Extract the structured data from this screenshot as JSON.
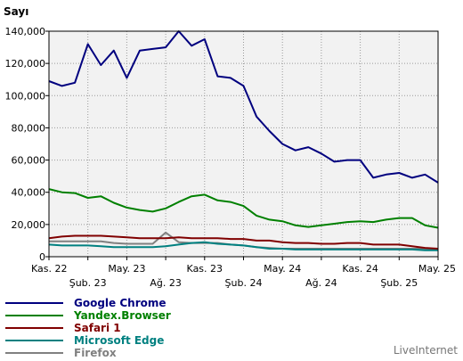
{
  "chart_data": {
    "type": "line",
    "title": "",
    "ylabel": "Sayı",
    "xlabel": "",
    "ylim": [
      0,
      140000
    ],
    "grid": true,
    "legend_position": "bottom-left",
    "yticks": [
      0,
      20000,
      40000,
      60000,
      80000,
      100000,
      120000,
      140000
    ],
    "ytick_labels": [
      "0",
      "20,000",
      "40,000",
      "60,000",
      "80,000",
      "100,000",
      "120,000",
      "140,000"
    ],
    "x": [
      "2022-11",
      "2022-12",
      "2023-01",
      "2023-02",
      "2023-03",
      "2023-04",
      "2023-05",
      "2023-06",
      "2023-07",
      "2023-08",
      "2023-09",
      "2023-10",
      "2023-11",
      "2023-12",
      "2024-01",
      "2024-02",
      "2024-03",
      "2024-04",
      "2024-05",
      "2024-06",
      "2024-07",
      "2024-08",
      "2024-09",
      "2024-10",
      "2024-11",
      "2024-12",
      "2025-01",
      "2025-02",
      "2025-03",
      "2025-04",
      "2025-05"
    ],
    "xtick_labels": [
      {
        "at": "2022-11",
        "label": "Kas. 22",
        "row": 0
      },
      {
        "at": "2023-02",
        "label": "Şub. 23",
        "row": 1
      },
      {
        "at": "2023-05",
        "label": "May. 23",
        "row": 0
      },
      {
        "at": "2023-08",
        "label": "Ağ. 23",
        "row": 1
      },
      {
        "at": "2023-11",
        "label": "Kas. 23",
        "row": 0
      },
      {
        "at": "2024-02",
        "label": "Şub. 24",
        "row": 1
      },
      {
        "at": "2024-05",
        "label": "May. 24",
        "row": 0
      },
      {
        "at": "2024-08",
        "label": "Ağ. 24",
        "row": 1
      },
      {
        "at": "2024-11",
        "label": "Kas. 24",
        "row": 0
      },
      {
        "at": "2025-02",
        "label": "Şub. 25",
        "row": 1
      },
      {
        "at": "2025-05",
        "label": "May. 25",
        "row": 0
      }
    ],
    "series": [
      {
        "name": "Google Chrome",
        "color": "#00007f",
        "values": [
          109000,
          106000,
          108000,
          132000,
          119000,
          128000,
          111000,
          128000,
          129000,
          130000,
          140000,
          131000,
          135000,
          112000,
          111000,
          106000,
          87000,
          78000,
          70000,
          66000,
          68000,
          64000,
          59000,
          60000,
          60000,
          49000,
          51000,
          52000,
          49000,
          51000,
          46000
        ]
      },
      {
        "name": "Yandex.Browser",
        "color": "#008000",
        "values": [
          42000,
          40000,
          39500,
          36500,
          37500,
          33500,
          30500,
          29000,
          28000,
          30000,
          34000,
          37500,
          38500,
          35000,
          34000,
          31500,
          25500,
          23000,
          22000,
          19500,
          18500,
          19500,
          20500,
          21500,
          22000,
          21500,
          23000,
          24000,
          24000,
          19500,
          18000
        ]
      },
      {
        "name": "Safari 1",
        "color": "#800000",
        "values": [
          11500,
          12500,
          13000,
          13000,
          13000,
          12500,
          12000,
          11500,
          11500,
          11500,
          12000,
          11500,
          11500,
          11500,
          11000,
          11000,
          10000,
          10000,
          9000,
          8500,
          8500,
          8000,
          8000,
          8500,
          8500,
          7500,
          7500,
          7500,
          6500,
          5500,
          5000
        ]
      },
      {
        "name": "Microsoft Edge",
        "color": "#008080",
        "values": [
          7500,
          7000,
          7000,
          7000,
          6500,
          6000,
          6000,
          6000,
          6000,
          6500,
          7500,
          8500,
          9000,
          8000,
          7500,
          7000,
          6000,
          5000,
          5000,
          4500,
          4500,
          4500,
          4500,
          4500,
          4500,
          4500,
          4500,
          4500,
          4500,
          4000,
          4000
        ]
      },
      {
        "name": "Firefox",
        "color": "#808080",
        "values": [
          9500,
          9500,
          9500,
          9500,
          9500,
          8500,
          8000,
          8000,
          8000,
          15000,
          9000,
          8500,
          8500,
          8500,
          7500,
          7000,
          6000,
          5500,
          5000,
          5000,
          5000,
          5000,
          5000,
          5000,
          5000,
          5000,
          5000,
          5000,
          5000,
          5000,
          4500
        ]
      }
    ]
  },
  "brand": "LiveInternet"
}
